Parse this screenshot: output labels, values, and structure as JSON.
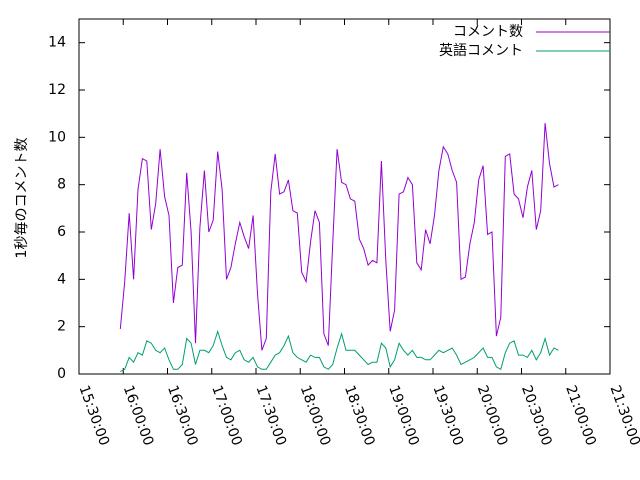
{
  "chart_data": {
    "type": "line",
    "title": "",
    "xlabel": "",
    "ylabel": "1秒毎のコメント数",
    "ylim": [
      0,
      15
    ],
    "xlim": [
      "15:30:00",
      "21:30:00"
    ],
    "y_ticks": [
      0,
      2,
      4,
      6,
      8,
      10,
      12,
      14
    ],
    "x_ticks": [
      "15:30:00",
      "16:00:00",
      "16:30:00",
      "17:00:00",
      "17:30:00",
      "18:00:00",
      "18:30:00",
      "19:00:00",
      "19:30:00",
      "20:00:00",
      "20:30:00",
      "21:00:00",
      "21:30:00"
    ],
    "grid": false,
    "legend_position": "top-right",
    "x_start": "15:58:00",
    "x_step_minutes": 3,
    "series": [
      {
        "name": "コメント数",
        "color": "#9400d3",
        "values": [
          1.9,
          3.9,
          6.8,
          4.0,
          7.8,
          9.1,
          9.0,
          6.1,
          7.2,
          9.5,
          7.5,
          6.7,
          3.0,
          4.5,
          4.6,
          8.5,
          6.0,
          1.3,
          6.2,
          8.6,
          6.0,
          6.5,
          9.4,
          7.8,
          4.0,
          4.5,
          5.5,
          6.4,
          5.8,
          5.3,
          6.7,
          3.4,
          1.0,
          1.5,
          7.7,
          9.3,
          7.6,
          7.7,
          8.2,
          6.9,
          6.8,
          4.3,
          3.9,
          5.6,
          6.9,
          6.4,
          1.7,
          1.2,
          5.5,
          9.5,
          8.1,
          8.0,
          7.4,
          7.3,
          5.7,
          5.3,
          4.6,
          4.8,
          4.7,
          9.0,
          4.8,
          1.8,
          2.7,
          7.6,
          7.7,
          8.3,
          8.0,
          4.7,
          4.4,
          6.1,
          5.5,
          6.7,
          8.6,
          9.6,
          9.3,
          8.6,
          8.1,
          4.0,
          4.1,
          5.5,
          6.4,
          8.2,
          8.8,
          5.9,
          6.0,
          1.6,
          2.4,
          9.2,
          9.3,
          7.6,
          7.4,
          6.6,
          7.9,
          8.6,
          6.1,
          6.9,
          10.6,
          8.9,
          7.9,
          8.0
        ]
      },
      {
        "name": "英語コメント",
        "color": "#009e73",
        "values": [
          0.1,
          0.2,
          0.7,
          0.5,
          0.9,
          0.8,
          1.4,
          1.3,
          1.0,
          0.9,
          1.1,
          0.6,
          0.2,
          0.2,
          0.4,
          1.5,
          1.3,
          0.4,
          1.0,
          1.0,
          0.9,
          1.2,
          1.8,
          1.2,
          0.7,
          0.6,
          0.9,
          1.0,
          0.6,
          0.5,
          0.7,
          0.3,
          0.2,
          0.2,
          0.5,
          0.8,
          0.9,
          1.2,
          1.6,
          0.9,
          0.7,
          0.6,
          0.5,
          0.8,
          0.7,
          0.7,
          0.3,
          0.2,
          0.4,
          1.1,
          1.7,
          1.0,
          1.0,
          1.0,
          0.8,
          0.6,
          0.4,
          0.5,
          0.5,
          1.3,
          1.1,
          0.3,
          0.6,
          1.3,
          1.0,
          0.8,
          1.0,
          0.7,
          0.7,
          0.6,
          0.6,
          0.8,
          1.0,
          0.9,
          1.0,
          1.1,
          0.8,
          0.4,
          0.5,
          0.6,
          0.7,
          0.9,
          1.1,
          0.7,
          0.7,
          0.3,
          0.2,
          0.9,
          1.3,
          1.4,
          0.8,
          0.8,
          0.7,
          1.0,
          0.6,
          0.9,
          1.5,
          0.8,
          1.1,
          1.0
        ]
      }
    ]
  }
}
